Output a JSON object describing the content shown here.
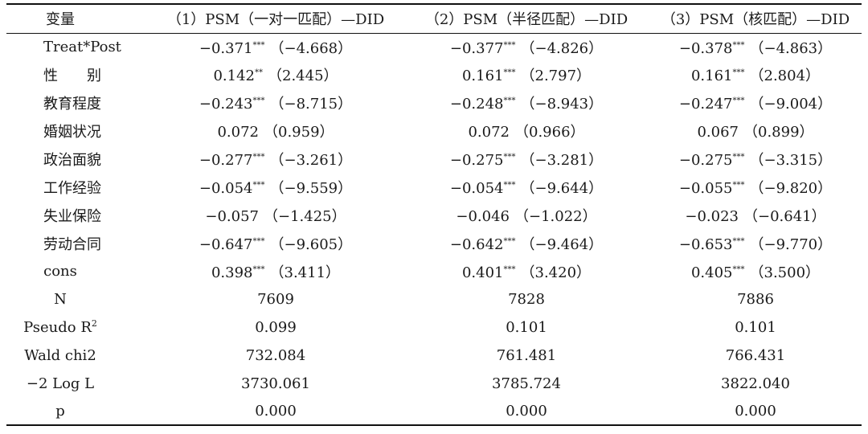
{
  "table": {
    "headers": [
      "变量",
      "（1）PSM（一对一匹配）—DID",
      "（2）PSM（半径匹配）—DID",
      "（3）PSM（核匹配）—DID"
    ],
    "coef_rows": [
      {
        "label": "Treat*Post",
        "cells": [
          {
            "coef": "−0.371",
            "stars": "***",
            "t": "（−4.668）"
          },
          {
            "coef": "−0.377",
            "stars": "***",
            "t": "（−4.826）"
          },
          {
            "coef": "−0.378",
            "stars": "***",
            "t": "（−4.863）"
          }
        ]
      },
      {
        "label": "性　　别",
        "cells": [
          {
            "coef": "0.142",
            "stars": "**",
            "t": "（2.445）"
          },
          {
            "coef": "0.161",
            "stars": "***",
            "t": "（2.797）"
          },
          {
            "coef": "0.161",
            "stars": "***",
            "t": "（2.804）"
          }
        ]
      },
      {
        "label": "教育程度",
        "cells": [
          {
            "coef": "−0.243",
            "stars": "***",
            "t": "（−8.715）"
          },
          {
            "coef": "−0.248",
            "stars": "***",
            "t": "（−8.943）"
          },
          {
            "coef": "−0.247",
            "stars": "***",
            "t": "（−9.004）"
          }
        ]
      },
      {
        "label": "婚姻状况",
        "cells": [
          {
            "coef": "0.072",
            "stars": "",
            "t": "（0.959）"
          },
          {
            "coef": "0.072",
            "stars": "",
            "t": "（0.966）"
          },
          {
            "coef": "0.067",
            "stars": "",
            "t": "（0.899）"
          }
        ]
      },
      {
        "label": "政治面貌",
        "cells": [
          {
            "coef": "−0.277",
            "stars": "***",
            "t": "（−3.261）"
          },
          {
            "coef": "−0.275",
            "stars": "***",
            "t": "（−3.281）"
          },
          {
            "coef": "−0.275",
            "stars": "***",
            "t": "（−3.315）"
          }
        ]
      },
      {
        "label": "工作经验",
        "cells": [
          {
            "coef": "−0.054",
            "stars": "***",
            "t": "（−9.559）"
          },
          {
            "coef": "−0.054",
            "stars": "***",
            "t": "（−9.644）"
          },
          {
            "coef": "−0.055",
            "stars": "***",
            "t": "（−9.820）"
          }
        ]
      },
      {
        "label": "失业保险",
        "cells": [
          {
            "coef": "−0.057",
            "stars": "",
            "t": "（−1.425）"
          },
          {
            "coef": "−0.046",
            "stars": "",
            "t": "（−1.022）"
          },
          {
            "coef": "−0.023",
            "stars": "",
            "t": "（−0.641）"
          }
        ]
      },
      {
        "label": "劳动合同",
        "cells": [
          {
            "coef": "−0.647",
            "stars": "***",
            "t": "（−9.605）"
          },
          {
            "coef": "−0.642",
            "stars": "***",
            "t": "（−9.464）"
          },
          {
            "coef": "−0.653",
            "stars": "***",
            "t": "（−9.770）"
          }
        ]
      },
      {
        "label": "cons",
        "cells": [
          {
            "coef": "0.398",
            "stars": "***",
            "t": "（3.411）"
          },
          {
            "coef": "0.401",
            "stars": "***",
            "t": "（3.420）"
          },
          {
            "coef": "0.405",
            "stars": "***",
            "t": "（3.500）"
          }
        ]
      }
    ],
    "stat_rows": [
      {
        "label": "N",
        "values": [
          "7609",
          "7828",
          "7886"
        ]
      },
      {
        "label": "Pseudo R",
        "sup": "2",
        "values": [
          "0.099",
          "0.101",
          "0.101"
        ]
      },
      {
        "label": "Wald chi2",
        "values": [
          "732.084",
          "761.481",
          "766.431"
        ]
      },
      {
        "label": "−2 Log L",
        "values": [
          "3730.061",
          "3785.724",
          "3822.040"
        ]
      },
      {
        "label": "p",
        "values": [
          "0.000",
          "0.000",
          "0.000"
        ]
      }
    ]
  }
}
